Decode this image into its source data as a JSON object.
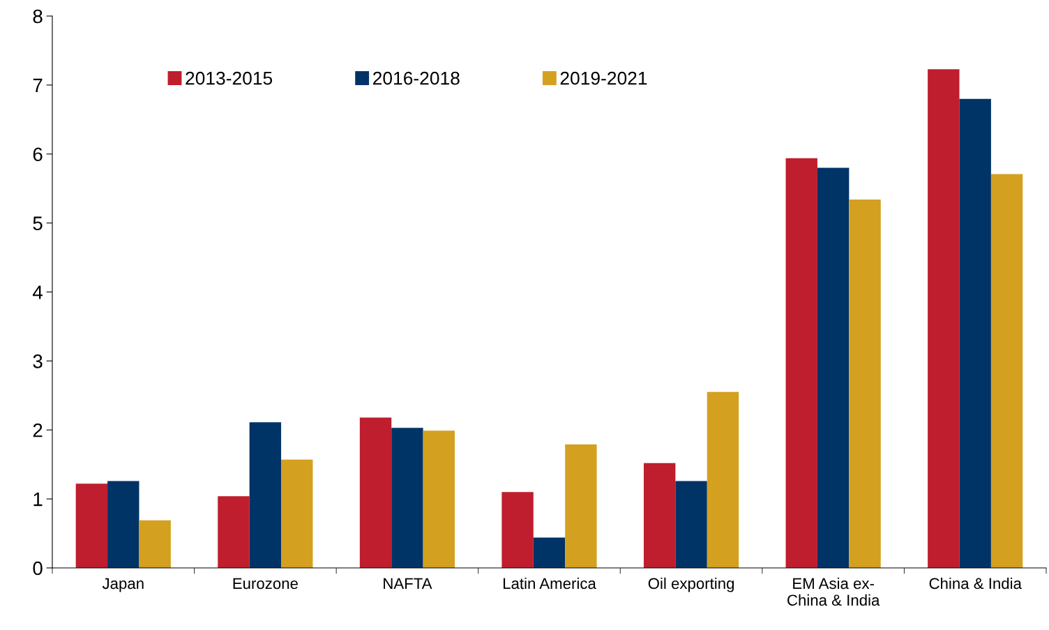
{
  "chart_data": {
    "type": "bar",
    "categories": [
      "Japan",
      "Eurozone",
      "NAFTA",
      "Latin America",
      "Oil exporting",
      "EM Asia ex-\nChina & India",
      "China & India"
    ],
    "series": [
      {
        "name": "2013-2015",
        "color": "#be1e2d",
        "values": [
          1.22,
          1.04,
          2.18,
          1.1,
          1.52,
          5.94,
          7.23
        ]
      },
      {
        "name": "2016-2018",
        "color": "#003366",
        "values": [
          1.26,
          2.11,
          2.03,
          0.44,
          1.26,
          5.8,
          6.8
        ]
      },
      {
        "name": "2019-2021",
        "color": "#d4a020",
        "values": [
          0.69,
          1.57,
          1.99,
          1.79,
          2.55,
          5.34,
          5.71
        ]
      }
    ],
    "ylim": [
      0,
      8
    ],
    "yticks": [
      0,
      1,
      2,
      3,
      4,
      5,
      6,
      7,
      8
    ],
    "grid": false,
    "legend": "top left"
  }
}
